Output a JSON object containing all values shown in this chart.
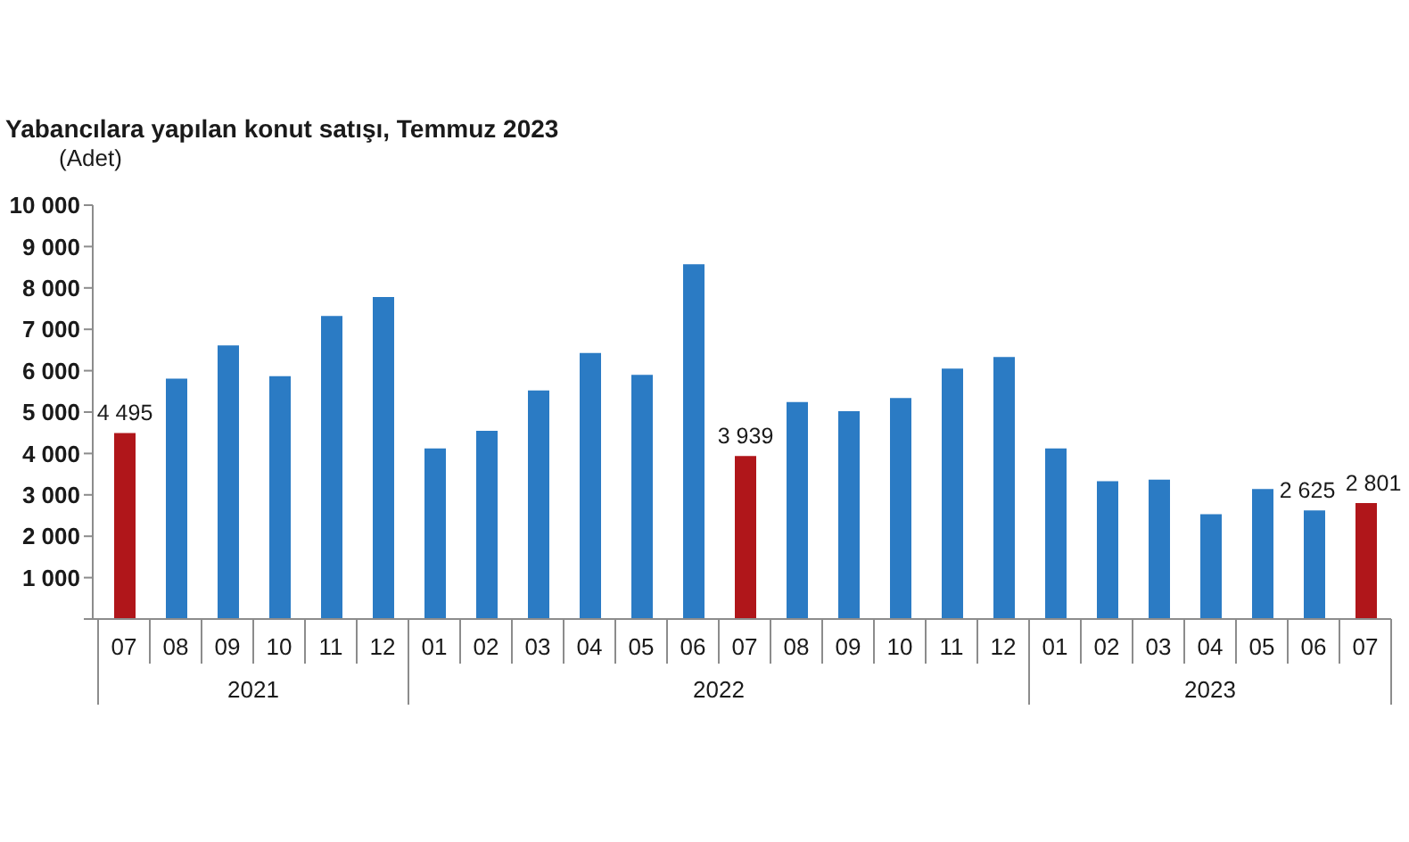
{
  "chart_data": {
    "type": "bar",
    "title": "Yabancılara yapılan konut satışı, Temmuz 2023",
    "ylabel": "(Adet)",
    "categories": [
      "07",
      "08",
      "09",
      "10",
      "11",
      "12",
      "01",
      "02",
      "03",
      "04",
      "05",
      "06",
      "07",
      "08",
      "09",
      "10",
      "11",
      "12",
      "01",
      "02",
      "03",
      "04",
      "05",
      "06",
      "07"
    ],
    "values": [
      4495,
      5810,
      6610,
      5870,
      7320,
      7780,
      4120,
      4550,
      5520,
      6430,
      5900,
      8570,
      3939,
      5240,
      5020,
      5340,
      6050,
      6330,
      4120,
      3330,
      3370,
      2530,
      3140,
      2625,
      2801
    ],
    "colors": [
      "#b0161a",
      "#2b7bc4",
      "#2b7bc4",
      "#2b7bc4",
      "#2b7bc4",
      "#2b7bc4",
      "#2b7bc4",
      "#2b7bc4",
      "#2b7bc4",
      "#2b7bc4",
      "#2b7bc4",
      "#2b7bc4",
      "#b0161a",
      "#2b7bc4",
      "#2b7bc4",
      "#2b7bc4",
      "#2b7bc4",
      "#2b7bc4",
      "#2b7bc4",
      "#2b7bc4",
      "#2b7bc4",
      "#2b7bc4",
      "#2b7bc4",
      "#2b7bc4",
      "#b0161a"
    ],
    "value_labels": [
      "4 495",
      null,
      null,
      null,
      null,
      null,
      null,
      null,
      null,
      null,
      null,
      null,
      "3 939",
      null,
      null,
      null,
      null,
      null,
      null,
      null,
      null,
      null,
      null,
      "2 625",
      "2 801"
    ],
    "ylim": [
      0,
      10000
    ],
    "yticks": [
      {
        "value": 0,
        "label": null
      },
      {
        "value": 1000,
        "label": "1 000"
      },
      {
        "value": 2000,
        "label": "2 000"
      },
      {
        "value": 3000,
        "label": "3 000"
      },
      {
        "value": 4000,
        "label": "4 000"
      },
      {
        "value": 5000,
        "label": "5 000"
      },
      {
        "value": 6000,
        "label": "6 000"
      },
      {
        "value": 7000,
        "label": "7 000"
      },
      {
        "value": 8000,
        "label": "8 000"
      },
      {
        "value": 9000,
        "label": "9 000"
      },
      {
        "value": 10000,
        "label": "10 000"
      }
    ],
    "annotations": [
      "2021",
      "2022",
      "2023"
    ]
  }
}
